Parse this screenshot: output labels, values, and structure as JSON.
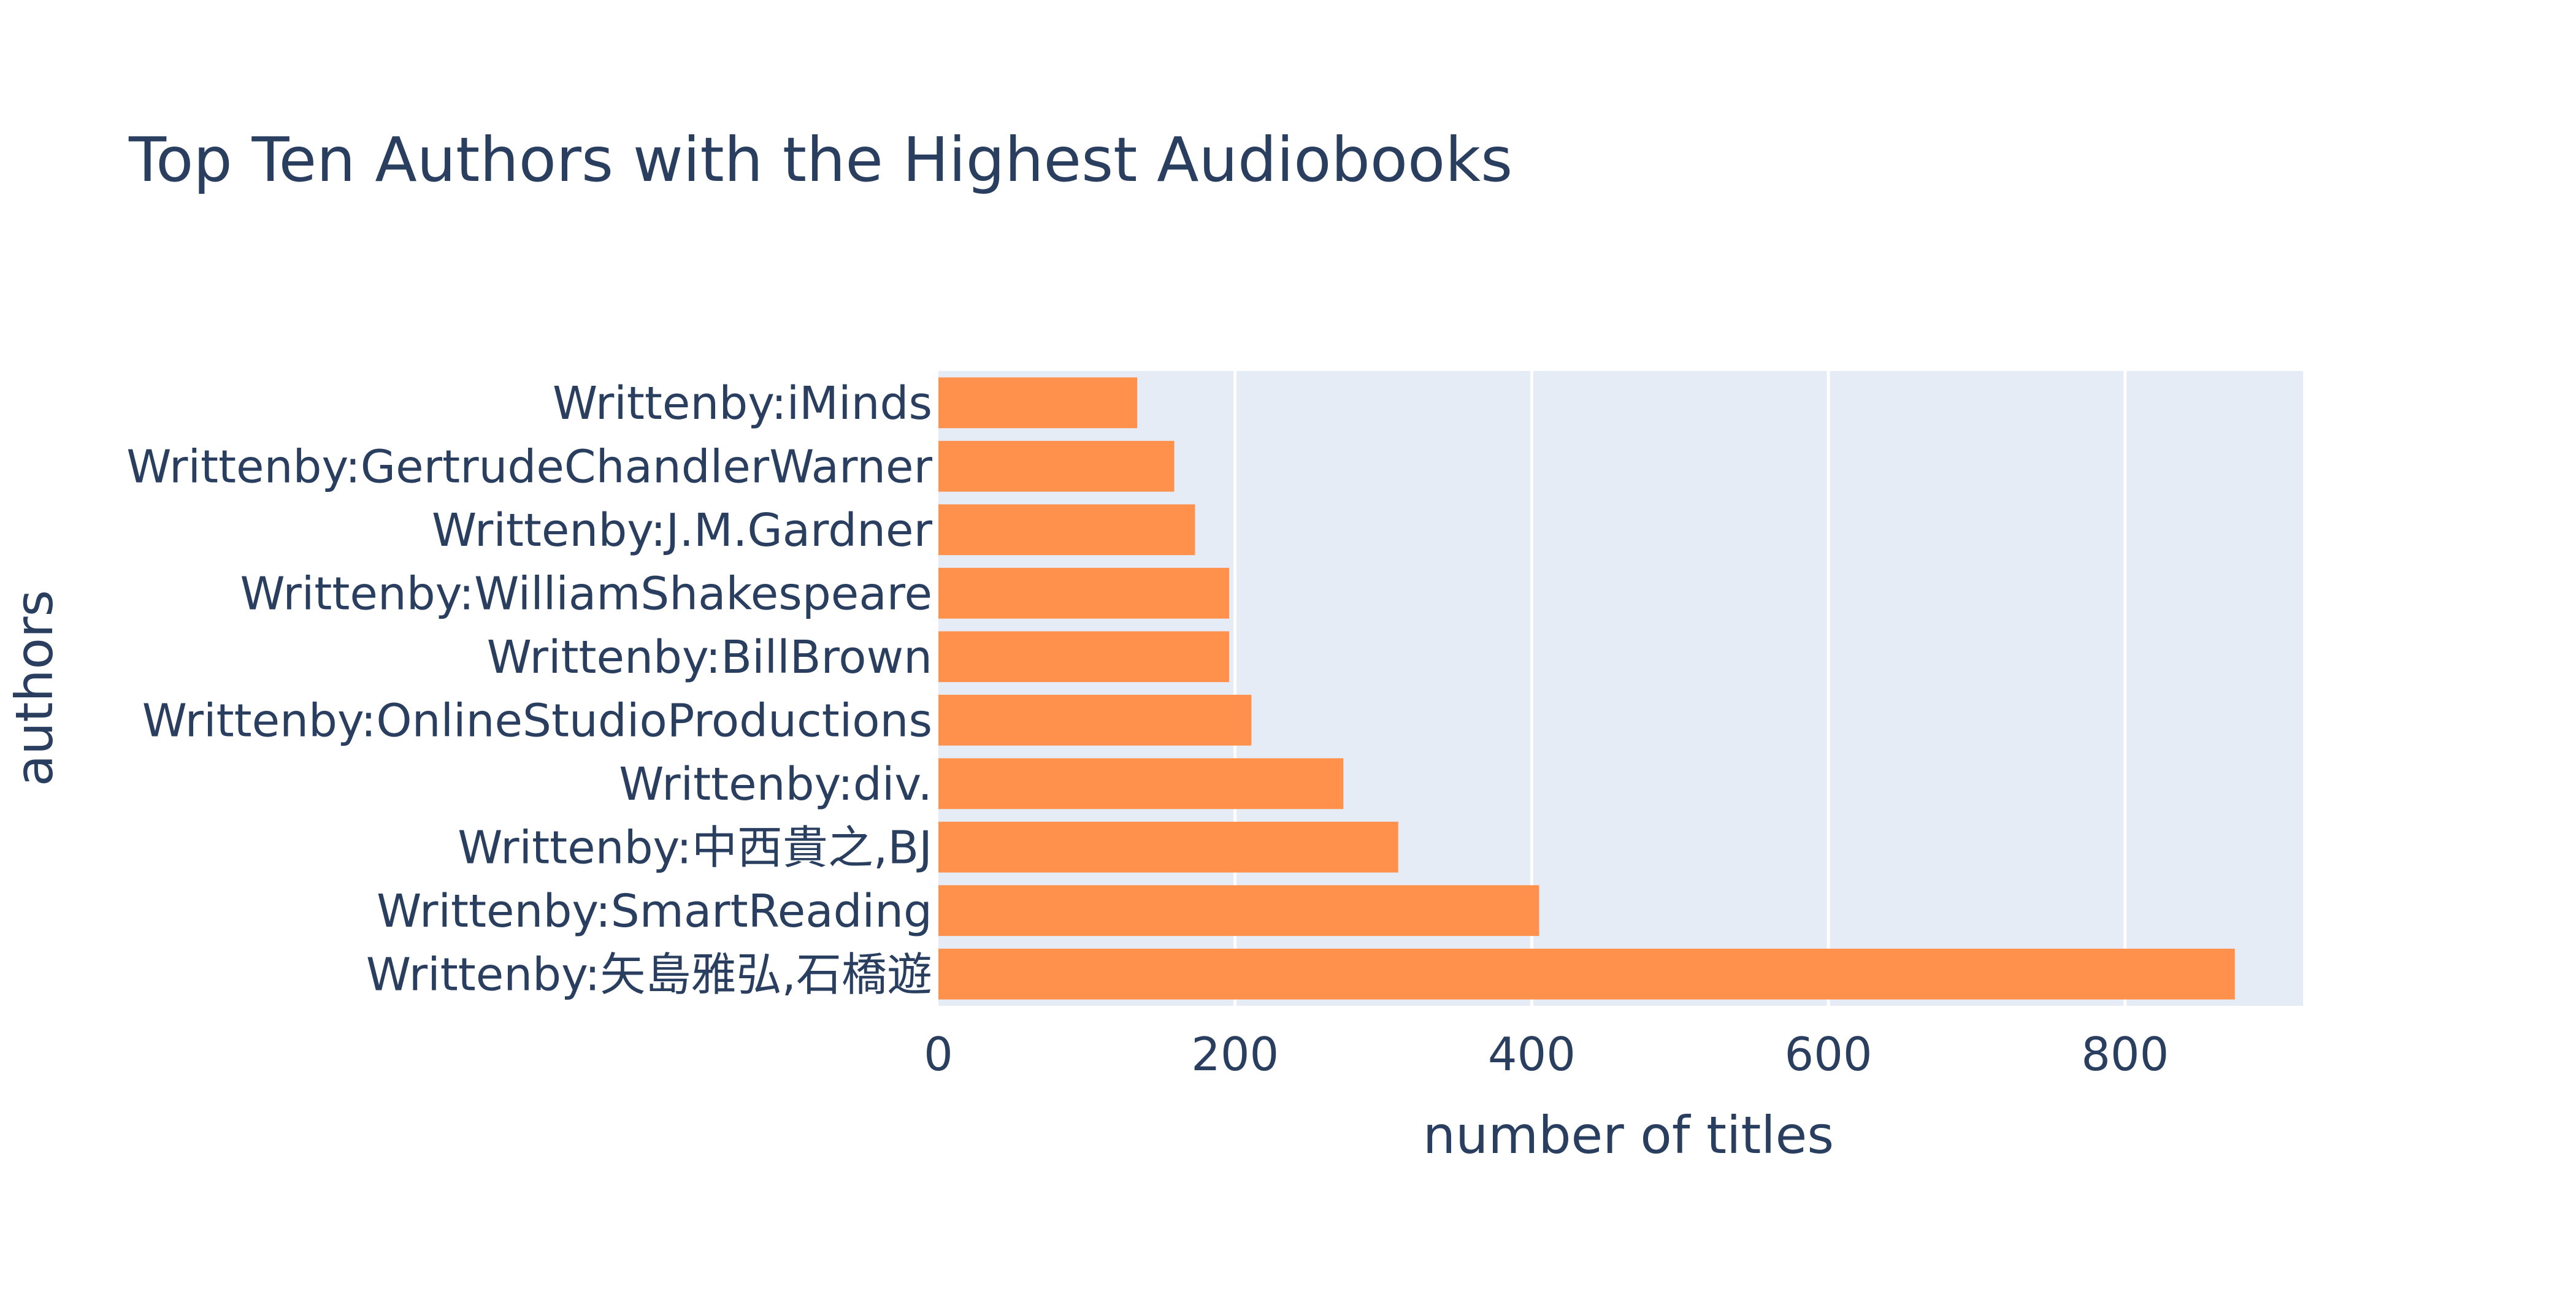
{
  "chart_data": {
    "type": "bar",
    "orientation": "horizontal",
    "title": "Top Ten Authors with the Highest Audiobooks",
    "xlabel": "number of titles",
    "ylabel": "authors",
    "xlim": [
      0,
      920
    ],
    "xticks": [
      0,
      200,
      400,
      600,
      800
    ],
    "grid": true,
    "legend": "none",
    "categories": [
      "Writtenby:矢島雅弘,石橋遊",
      "Writtenby:SmartReading",
      "Writtenby:中西貴之,BJ",
      "Writtenby:div.",
      "Writtenby:OnlineStudioProductions",
      "Writtenby:BillBrown",
      "Writtenby:WilliamShakespeare",
      "Writtenby:J.M.Gardner",
      "Writtenby:GertrudeChandlerWarner",
      "Writtenby:iMinds"
    ],
    "values": [
      874,
      405,
      310,
      273,
      211,
      196,
      196,
      173,
      159,
      134
    ],
    "colors": {
      "bar": "#ff914d",
      "plot_bg": "#e5ecf6",
      "grid": "#ffffff",
      "text": "#2a3f5f"
    }
  }
}
